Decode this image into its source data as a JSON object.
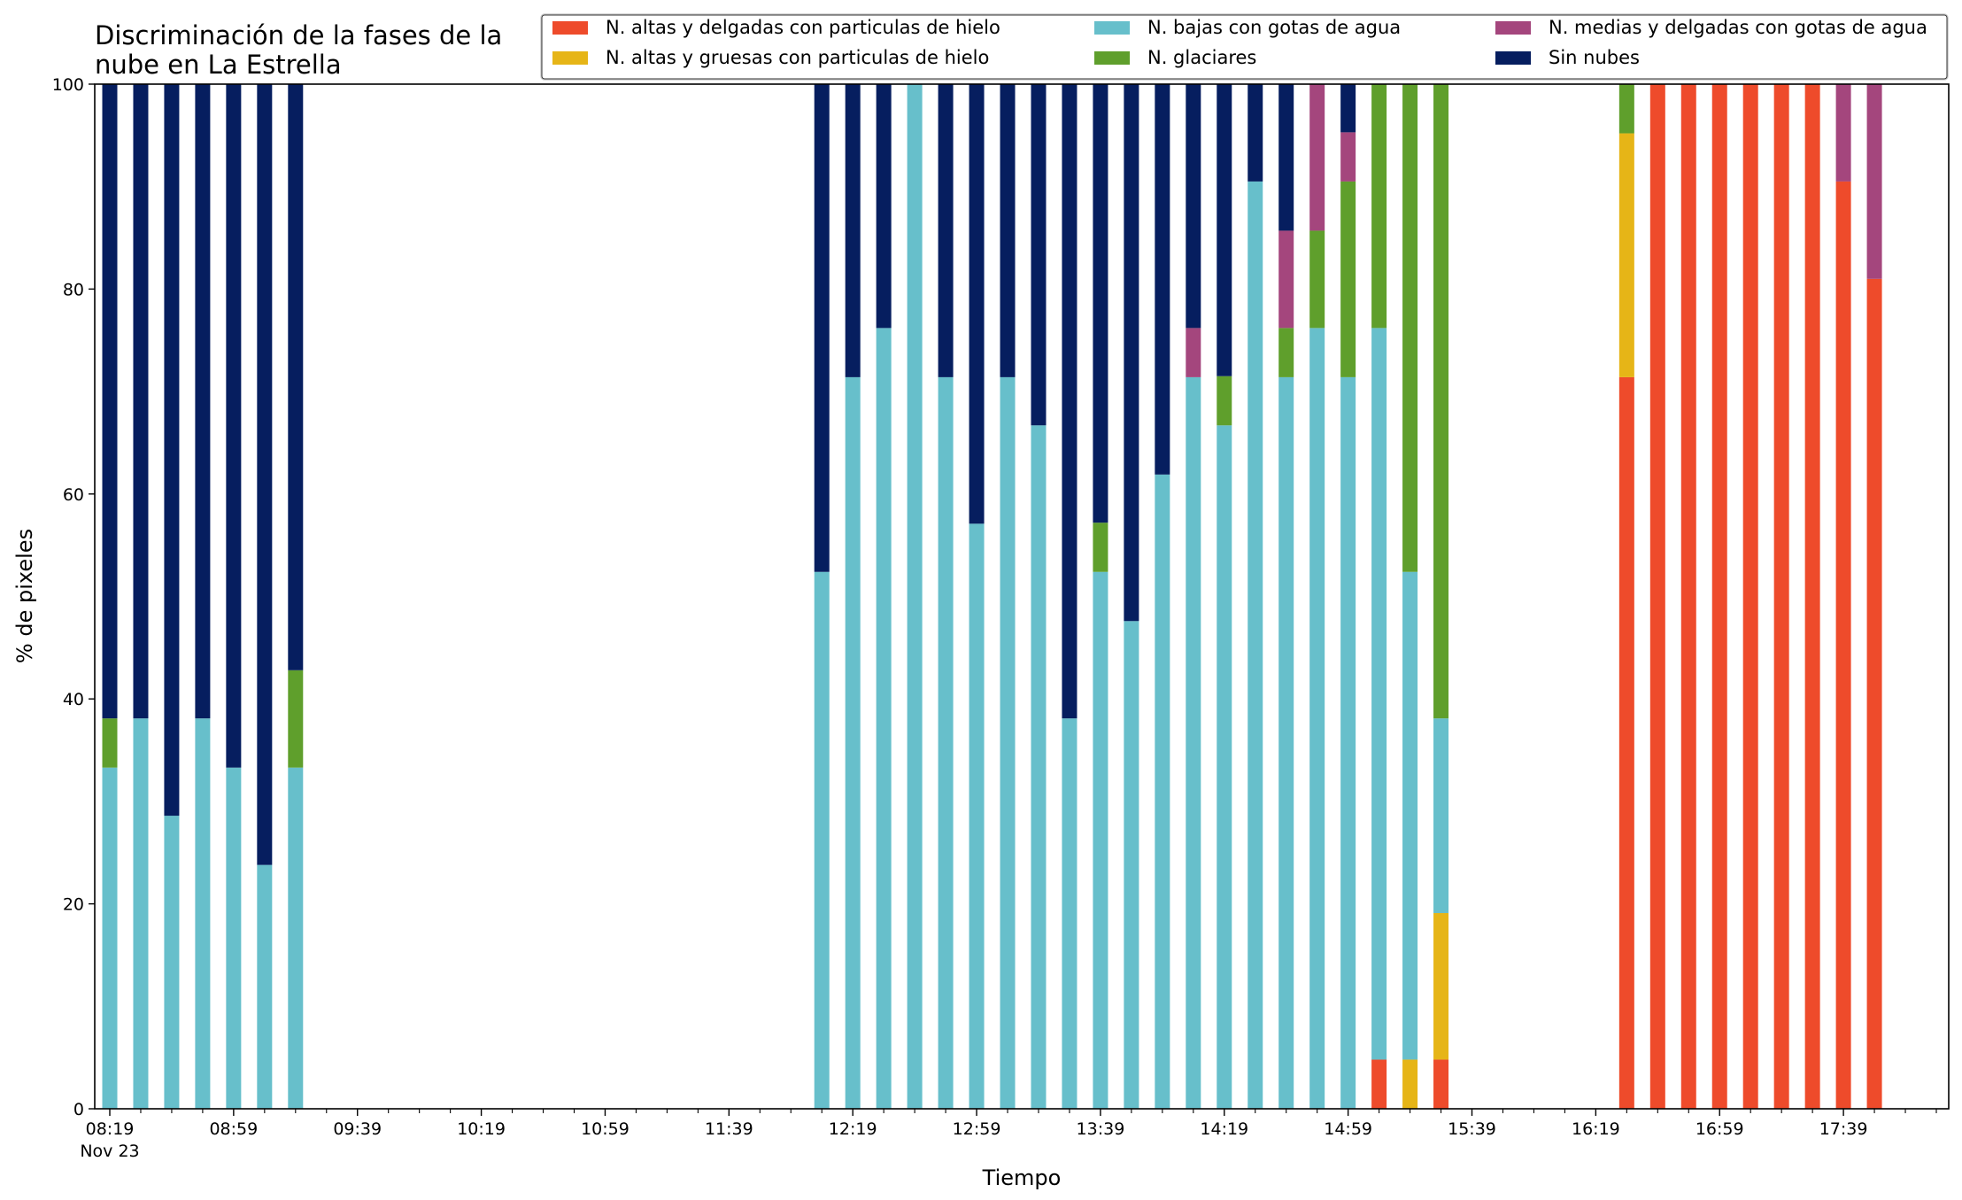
{
  "chart_data": {
    "type": "bar",
    "stacked": true,
    "title_lines": [
      "Discriminación de la fases de la",
      "nube en La Estrella"
    ],
    "xlabel": "Tiempo",
    "ylabel": "% de pixeles",
    "ylim": [
      0,
      100
    ],
    "yticks": [
      "0",
      "20",
      "40",
      "60",
      "80",
      "100"
    ],
    "grid": false,
    "legend_position": "top-right",
    "x_start_time": "08:19",
    "x_end_time": "18:09",
    "date_label": "Nov 23",
    "xticks_major": [
      "08:19",
      "08:59",
      "09:39",
      "10:19",
      "10:59",
      "11:39",
      "12:19",
      "12:59",
      "13:39",
      "14:19",
      "14:59",
      "15:39",
      "16:19",
      "16:59",
      "17:39"
    ],
    "series": [
      {
        "name": "N. altas y delgadas con particulas de hielo",
        "color": "#EE4B2B"
      },
      {
        "name": "N. altas y gruesas con particulas de hielo",
        "color": "#E6B517"
      },
      {
        "name": "N. bajas con gotas de agua",
        "color": "#67BFCB"
      },
      {
        "name": "N. glaciares",
        "color": "#5F9F2C"
      },
      {
        "name": "N. medias y delgadas con gotas de agua",
        "color": "#A4467D"
      },
      {
        "name": "Sin nubes",
        "color": "#061E5F"
      }
    ],
    "bars": [
      {
        "time": "08:19",
        "values": [
          0,
          0,
          33.3,
          4.8,
          0,
          61.9
        ]
      },
      {
        "time": "08:29",
        "values": [
          0,
          0,
          38.1,
          0,
          0,
          61.9
        ]
      },
      {
        "time": "08:39",
        "values": [
          0,
          0,
          28.6,
          0,
          0,
          71.4
        ]
      },
      {
        "time": "08:49",
        "values": [
          0,
          0,
          38.1,
          0,
          0,
          61.9
        ]
      },
      {
        "time": "08:59",
        "values": [
          0,
          0,
          33.3,
          0,
          0,
          66.7
        ]
      },
      {
        "time": "09:09",
        "values": [
          0,
          0,
          23.8,
          0,
          0,
          76.2
        ]
      },
      {
        "time": "09:19",
        "values": [
          0,
          0,
          33.3,
          9.5,
          0,
          57.2
        ]
      },
      {
        "time": "12:09",
        "values": [
          0,
          0,
          52.4,
          0,
          0,
          47.6
        ]
      },
      {
        "time": "12:19",
        "values": [
          0,
          0,
          71.4,
          0,
          0,
          28.6
        ]
      },
      {
        "time": "12:29",
        "values": [
          0,
          0,
          76.2,
          0,
          0,
          23.8
        ]
      },
      {
        "time": "12:39",
        "values": [
          0,
          0,
          100,
          0,
          0,
          0
        ]
      },
      {
        "time": "12:49",
        "values": [
          0,
          0,
          71.4,
          0,
          0,
          28.6
        ]
      },
      {
        "time": "12:59",
        "values": [
          0,
          0,
          57.1,
          0,
          0,
          42.9
        ]
      },
      {
        "time": "13:09",
        "values": [
          0,
          0,
          71.4,
          0,
          0,
          28.6
        ]
      },
      {
        "time": "13:19",
        "values": [
          0,
          0,
          66.7,
          0,
          0,
          33.3
        ]
      },
      {
        "time": "13:29",
        "values": [
          0,
          0,
          38.1,
          0,
          0,
          61.9
        ]
      },
      {
        "time": "13:39",
        "values": [
          0,
          0,
          52.4,
          4.8,
          0,
          42.8
        ]
      },
      {
        "time": "13:49",
        "values": [
          0,
          0,
          47.6,
          0,
          0,
          52.4
        ]
      },
      {
        "time": "13:59",
        "values": [
          0,
          0,
          61.9,
          0,
          0,
          38.1
        ]
      },
      {
        "time": "14:09",
        "values": [
          0,
          0,
          71.4,
          0,
          4.8,
          23.8
        ]
      },
      {
        "time": "14:19",
        "values": [
          0,
          0,
          66.7,
          4.8,
          0,
          28.5
        ]
      },
      {
        "time": "14:29",
        "values": [
          0,
          0,
          90.5,
          0,
          0,
          9.5
        ]
      },
      {
        "time": "14:39",
        "values": [
          0,
          0,
          71.4,
          4.8,
          9.5,
          14.3
        ]
      },
      {
        "time": "14:49",
        "values": [
          0,
          0,
          76.2,
          9.5,
          14.3,
          0
        ]
      },
      {
        "time": "14:59",
        "values": [
          0,
          0,
          71.4,
          19.1,
          4.8,
          4.7
        ]
      },
      {
        "time": "15:09",
        "values": [
          4.8,
          0,
          71.4,
          23.8,
          0,
          0
        ]
      },
      {
        "time": "15:19",
        "values": [
          0,
          4.8,
          47.6,
          47.6,
          0,
          0
        ]
      },
      {
        "time": "15:29",
        "values": [
          4.8,
          14.3,
          19.0,
          61.9,
          0,
          0
        ]
      },
      {
        "time": "16:29",
        "values": [
          71.4,
          23.8,
          0,
          4.8,
          0,
          0
        ]
      },
      {
        "time": "16:39",
        "values": [
          100,
          0,
          0,
          0,
          0,
          0
        ]
      },
      {
        "time": "16:49",
        "values": [
          100,
          0,
          0,
          0,
          0,
          0
        ]
      },
      {
        "time": "16:59",
        "values": [
          100,
          0,
          0,
          0,
          0,
          0
        ]
      },
      {
        "time": "17:09",
        "values": [
          100,
          0,
          0,
          0,
          0,
          0
        ]
      },
      {
        "time": "17:19",
        "values": [
          100,
          0,
          0,
          0,
          0,
          0
        ]
      },
      {
        "time": "17:29",
        "values": [
          100,
          0,
          0,
          0,
          0,
          0
        ]
      },
      {
        "time": "17:39",
        "values": [
          90.5,
          0,
          0,
          0,
          9.5,
          0
        ]
      },
      {
        "time": "17:49",
        "values": [
          81.0,
          0,
          0,
          0,
          19.0,
          0
        ]
      }
    ]
  }
}
